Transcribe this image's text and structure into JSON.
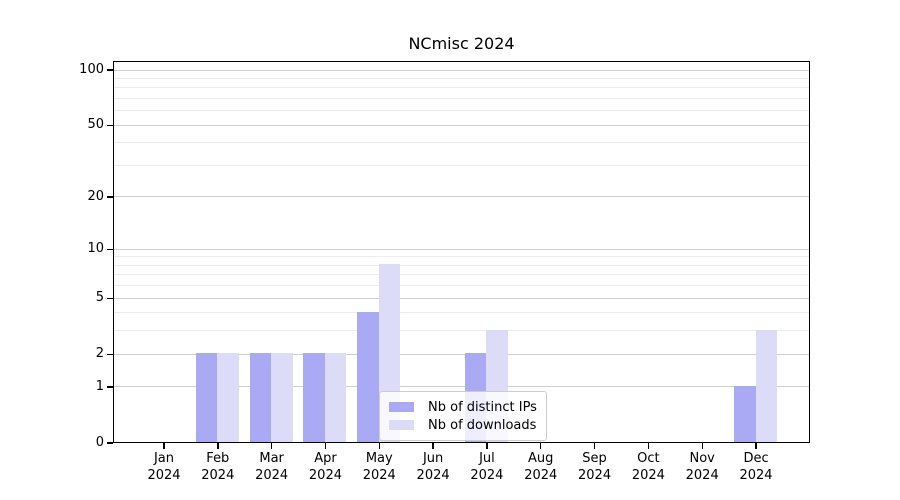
{
  "chart_data": {
    "type": "bar",
    "title": "NCmisc 2024",
    "categories": [
      "Jan",
      "Feb",
      "Mar",
      "Apr",
      "May",
      "Jun",
      "Jul",
      "Aug",
      "Sep",
      "Oct",
      "Nov",
      "Dec"
    ],
    "category_year": "2024",
    "series": [
      {
        "name": "Nb of distinct IPs",
        "color": "#a9a9f4",
        "values": [
          0,
          2,
          2,
          2,
          4,
          0,
          2,
          0,
          0,
          0,
          0,
          1
        ]
      },
      {
        "name": "Nb of downloads",
        "color": "#dcdcf9",
        "values": [
          0,
          2,
          2,
          2,
          8,
          0,
          3,
          0,
          0,
          0,
          0,
          3
        ]
      }
    ],
    "yscale": "log1p",
    "ylim": [
      0,
      112
    ],
    "yticks": [
      0,
      1,
      2,
      5,
      10,
      20,
      50,
      100
    ],
    "yticks_minor": [
      3,
      4,
      6,
      7,
      8,
      9,
      30,
      40,
      60,
      70,
      80,
      90
    ],
    "grid": "on",
    "legend_position": "lower center",
    "colors": {
      "grid_major": "#cfcfcf",
      "grid_minor": "#ededed",
      "spine": "#000000",
      "background": "#ffffff"
    }
  }
}
